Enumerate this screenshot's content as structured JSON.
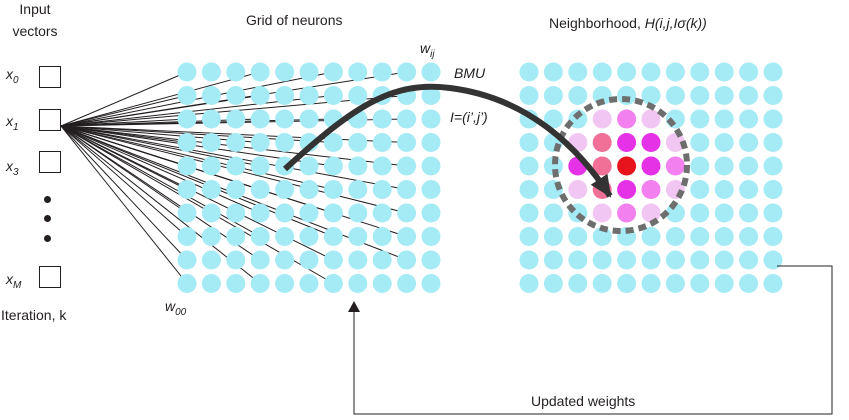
{
  "input": {
    "title_line1": "Input",
    "title_line2": "vectors",
    "x0": "x",
    "x0_sub": "0",
    "x1": "x",
    "x1_sub": "1",
    "x3": "x",
    "x3_sub": "3",
    "xM": "x",
    "xM_sub": "M",
    "iteration": "Iteration, k"
  },
  "grid": {
    "title": "Grid of neurons",
    "wij": "w",
    "wij_sub": "ij",
    "w00": "w",
    "w00_sub": "00",
    "rows": 10,
    "cols": 11
  },
  "bmu": {
    "label": "BMU",
    "index": "I=(i’,j’)"
  },
  "neighborhood": {
    "title_prefix": "Neighborhood, ",
    "title_formula": "H(i,j,Iσ(k))",
    "rows": 10,
    "cols": 11,
    "center_row": 4,
    "center_col": 4
  },
  "feedback": {
    "label": "Updated weights"
  },
  "colors": {
    "neuron": "#a5ebf5",
    "bmu": "#e8141b",
    "neighbor_strong": "#e632e6",
    "neighbor_rose": "#f07098",
    "neighbor_mid": "#f280ee",
    "neighbor_light": "#f2c6f2",
    "line": "#231f20",
    "arrow": "#333333",
    "ring": "#6e6e6e"
  },
  "icons": {
    "bmu_arrow": "curved-arrow-icon",
    "feedback_arrow": "arrow-up-icon"
  }
}
